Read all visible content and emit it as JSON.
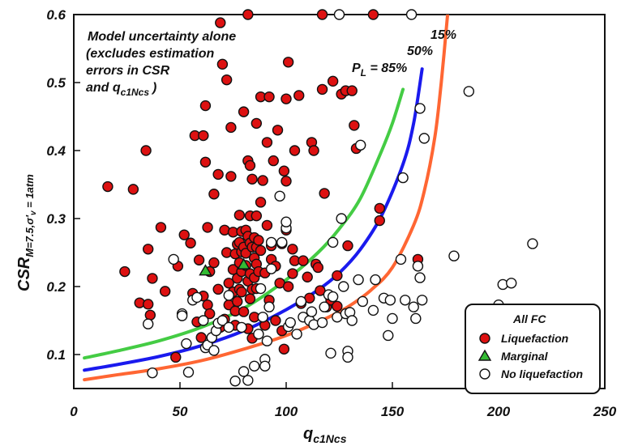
{
  "chart_data": {
    "type": "scatter",
    "xlabel": "q",
    "xlabel_sub": "c1Ncs",
    "ylabel": "CSR",
    "ylabel_sub": "M=7.5,σ'",
    "ylabel_sub2": "v",
    "ylabel_sub3": " = 1atm",
    "xlim": [
      0,
      250
    ],
    "ylim": [
      0.05,
      0.6
    ],
    "xticks": [
      "0",
      "50",
      "100",
      "150",
      "200",
      "250"
    ],
    "yticks": [
      "0.1",
      "0.2",
      "0.3",
      "0.4",
      "0.5",
      "0.6"
    ],
    "xtick_values": [
      0,
      50,
      100,
      150,
      200,
      250
    ],
    "ytick_values": [
      0.1,
      0.2,
      0.3,
      0.4,
      0.5,
      0.6
    ],
    "annotation": [
      "Model uncertainty alone",
      "(excludes estimation",
      "errors in CSR",
      "and q",
      "c1Ncs",
      ")"
    ],
    "curves": [
      {
        "label_pre": "P",
        "label_sub": "L",
        "label_post": " = 85%",
        "color": "#44cc44",
        "x": [
          5,
          20,
          40,
          60,
          80,
          100,
          115,
          125,
          135,
          145,
          150,
          155
        ],
        "y": [
          0.095,
          0.105,
          0.12,
          0.14,
          0.168,
          0.21,
          0.25,
          0.285,
          0.33,
          0.4,
          0.44,
          0.49
        ]
      },
      {
        "label": "50%",
        "color": "#1a1aee",
        "x": [
          5,
          20,
          40,
          60,
          80,
          100,
          115,
          125,
          135,
          145,
          155,
          160,
          164
        ],
        "y": [
          0.077,
          0.085,
          0.097,
          0.113,
          0.135,
          0.166,
          0.195,
          0.22,
          0.255,
          0.305,
          0.38,
          0.44,
          0.52
        ]
      },
      {
        "label": "15%",
        "color": "#ff6633",
        "x": [
          5,
          20,
          40,
          60,
          80,
          100,
          120,
          130,
          140,
          150,
          160,
          165,
          170,
          173,
          176
        ],
        "y": [
          0.063,
          0.07,
          0.079,
          0.091,
          0.108,
          0.128,
          0.155,
          0.172,
          0.195,
          0.228,
          0.29,
          0.34,
          0.42,
          0.5,
          0.6
        ]
      }
    ],
    "series": [
      {
        "name": "Liquefaction",
        "marker": "circle",
        "color": "#dd1111",
        "points": [
          [
            16,
            0.347
          ],
          [
            24,
            0.222
          ],
          [
            28,
            0.343
          ],
          [
            31,
            0.176
          ],
          [
            34,
            0.4
          ],
          [
            35,
            0.174
          ],
          [
            35,
            0.255
          ],
          [
            36,
            0.158
          ],
          [
            37,
            0.212
          ],
          [
            41,
            0.287
          ],
          [
            43,
            0.193
          ],
          [
            48,
            0.096
          ],
          [
            49,
            0.23
          ],
          [
            52,
            0.276
          ],
          [
            55,
            0.264
          ],
          [
            56,
            0.19
          ],
          [
            57,
            0.422
          ],
          [
            58,
            0.148
          ],
          [
            59,
            0.239
          ],
          [
            60,
            0.125
          ],
          [
            61,
            0.186
          ],
          [
            61,
            0.422
          ],
          [
            62,
            0.383
          ],
          [
            62,
            0.466
          ],
          [
            63,
            0.287
          ],
          [
            63,
            0.173
          ],
          [
            64,
            0.16
          ],
          [
            64,
            0.222
          ],
          [
            66,
            0.336
          ],
          [
            66,
            0.235
          ],
          [
            68,
            0.365
          ],
          [
            68,
            0.196
          ],
          [
            69,
            0.588
          ],
          [
            69,
            0.14
          ],
          [
            70,
            0.527
          ],
          [
            71,
            0.283
          ],
          [
            71,
            0.152
          ],
          [
            72,
            0.504
          ],
          [
            72,
            0.25
          ],
          [
            73,
            0.205
          ],
          [
            73,
            0.173
          ],
          [
            74,
            0.434
          ],
          [
            74,
            0.362
          ],
          [
            75,
            0.28
          ],
          [
            75,
            0.225
          ],
          [
            75,
            0.192
          ],
          [
            76,
            0.248
          ],
          [
            76,
            0.164
          ],
          [
            76,
            0.143
          ],
          [
            77,
            0.262
          ],
          [
            77,
            0.212
          ],
          [
            77,
            0.178
          ],
          [
            78,
            0.305
          ],
          [
            78,
            0.265
          ],
          [
            78,
            0.235
          ],
          [
            78,
            0.196
          ],
          [
            79,
            0.281
          ],
          [
            79,
            0.251
          ],
          [
            79,
            0.222
          ],
          [
            79,
            0.192
          ],
          [
            80,
            0.457
          ],
          [
            80,
            0.258
          ],
          [
            80,
            0.163
          ],
          [
            81,
            0.283
          ],
          [
            81,
            0.249
          ],
          [
            81,
            0.231
          ],
          [
            82,
            0.6
          ],
          [
            82,
            0.385
          ],
          [
            82,
            0.274
          ],
          [
            82,
            0.208
          ],
          [
            82,
            0.138
          ],
          [
            83,
            0.378
          ],
          [
            83,
            0.304
          ],
          [
            83,
            0.264
          ],
          [
            83,
            0.219
          ],
          [
            83,
            0.182
          ],
          [
            84,
            0.358
          ],
          [
            84,
            0.258
          ],
          [
            84,
            0.196
          ],
          [
            84,
            0.124
          ],
          [
            85,
            0.272
          ],
          [
            85,
            0.242
          ],
          [
            85,
            0.213
          ],
          [
            85,
            0.155
          ],
          [
            86,
            0.44
          ],
          [
            86,
            0.304
          ],
          [
            86,
            0.258
          ],
          [
            86,
            0.233
          ],
          [
            86,
            0.197
          ],
          [
            87,
            0.268
          ],
          [
            87,
            0.222
          ],
          [
            88,
            0.479
          ],
          [
            88,
            0.324
          ],
          [
            88,
            0.253
          ],
          [
            89,
            0.356
          ],
          [
            90,
            0.22
          ],
          [
            90,
            0.143
          ],
          [
            91,
            0.412
          ],
          [
            91,
            0.29
          ],
          [
            92,
            0.479
          ],
          [
            92,
            0.18
          ],
          [
            93,
            0.26
          ],
          [
            93,
            0.24
          ],
          [
            94,
            0.385
          ],
          [
            95,
            0.23
          ],
          [
            95,
            0.15
          ],
          [
            96,
            0.43
          ],
          [
            97,
            0.205
          ],
          [
            98,
            0.263
          ],
          [
            98,
            0.135
          ],
          [
            99,
            0.37
          ],
          [
            99,
            0.108
          ],
          [
            100,
            0.476
          ],
          [
            100,
            0.355
          ],
          [
            100,
            0.283
          ],
          [
            101,
            0.53
          ],
          [
            101,
            0.2
          ],
          [
            103,
            0.255
          ],
          [
            103,
            0.219
          ],
          [
            104,
            0.4
          ],
          [
            104,
            0.238
          ],
          [
            106,
            0.481
          ],
          [
            107,
            0.175
          ],
          [
            108,
            0.238
          ],
          [
            110,
            0.214
          ],
          [
            111,
            0.183
          ],
          [
            112,
            0.412
          ],
          [
            113,
            0.4
          ],
          [
            114,
            0.233
          ],
          [
            115,
            0.228
          ],
          [
            116,
            0.194
          ],
          [
            117,
            0.49
          ],
          [
            117,
            0.6
          ],
          [
            118,
            0.337
          ],
          [
            119,
            0.17
          ],
          [
            121,
            0.18
          ],
          [
            122,
            0.502
          ],
          [
            124,
            0.216
          ],
          [
            124,
            0.171
          ],
          [
            126,
            0.483
          ],
          [
            128,
            0.488
          ],
          [
            129,
            0.26
          ],
          [
            131,
            0.488
          ],
          [
            132,
            0.437
          ],
          [
            133,
            0.403
          ],
          [
            141,
            0.6
          ],
          [
            144,
            0.315
          ],
          [
            144,
            0.297
          ],
          [
            162,
            0.24
          ]
        ]
      },
      {
        "name": "Marginal",
        "marker": "triangle",
        "color": "#33bb33",
        "points": [
          [
            62,
            0.223
          ],
          [
            80,
            0.232
          ]
        ]
      },
      {
        "name": "No liquefaction",
        "marker": "circle",
        "color": "#ffffff",
        "points": [
          [
            35,
            0.145
          ],
          [
            37,
            0.073
          ],
          [
            47,
            0.24
          ],
          [
            51,
            0.16
          ],
          [
            51,
            0.157
          ],
          [
            53,
            0.116
          ],
          [
            54,
            0.074
          ],
          [
            56,
            0.18
          ],
          [
            58,
            0.184
          ],
          [
            61,
            0.15
          ],
          [
            62,
            0.11
          ],
          [
            63,
            0.114
          ],
          [
            65,
            0.125
          ],
          [
            66,
            0.106
          ],
          [
            67,
            0.135
          ],
          [
            68,
            0.146
          ],
          [
            70,
            0.15
          ],
          [
            73,
            0.187
          ],
          [
            73,
            0.14
          ],
          [
            76,
            0.061
          ],
          [
            79,
            0.14
          ],
          [
            80,
            0.075
          ],
          [
            82,
            0.062
          ],
          [
            85,
            0.083
          ],
          [
            87,
            0.13
          ],
          [
            88,
            0.197
          ],
          [
            89,
            0.155
          ],
          [
            90,
            0.093
          ],
          [
            90,
            0.083
          ],
          [
            91,
            0.12
          ],
          [
            92,
            0.17
          ],
          [
            93,
            0.265
          ],
          [
            93,
            0.226
          ],
          [
            97,
            0.333
          ],
          [
            98,
            0.265
          ],
          [
            100,
            0.286
          ],
          [
            100,
            0.295
          ],
          [
            101,
            0.141
          ],
          [
            102,
            0.147
          ],
          [
            105,
            0.13
          ],
          [
            107,
            0.178
          ],
          [
            108,
            0.155
          ],
          [
            111,
            0.15
          ],
          [
            112,
            0.163
          ],
          [
            113,
            0.144
          ],
          [
            117,
            0.147
          ],
          [
            118,
            0.17
          ],
          [
            120,
            0.188
          ],
          [
            121,
            0.102
          ],
          [
            122,
            0.265
          ],
          [
            122,
            0.185
          ],
          [
            124,
            0.155
          ],
          [
            125,
            0.6
          ],
          [
            126,
            0.3
          ],
          [
            127,
            0.2
          ],
          [
            128,
            0.16
          ],
          [
            129,
            0.105
          ],
          [
            129,
            0.096
          ],
          [
            130,
            0.162
          ],
          [
            131,
            0.15
          ],
          [
            134,
            0.21
          ],
          [
            135,
            0.408
          ],
          [
            136,
            0.178
          ],
          [
            141,
            0.165
          ],
          [
            142,
            0.21
          ],
          [
            146,
            0.183
          ],
          [
            148,
            0.128
          ],
          [
            149,
            0.18
          ],
          [
            150,
            0.153
          ],
          [
            154,
            0.24
          ],
          [
            155,
            0.36
          ],
          [
            156,
            0.18
          ],
          [
            159,
            0.6
          ],
          [
            160,
            0.17
          ],
          [
            161,
            0.153
          ],
          [
            162,
            0.23
          ],
          [
            163,
            0.462
          ],
          [
            163,
            0.213
          ],
          [
            164,
            0.18
          ],
          [
            165,
            0.418
          ],
          [
            179,
            0.245
          ],
          [
            186,
            0.487
          ],
          [
            200,
            0.173
          ],
          [
            202,
            0.203
          ],
          [
            206,
            0.205
          ],
          [
            216,
            0.263
          ]
        ]
      }
    ],
    "legend": {
      "title": "All FC",
      "position": "bottom-right"
    }
  }
}
